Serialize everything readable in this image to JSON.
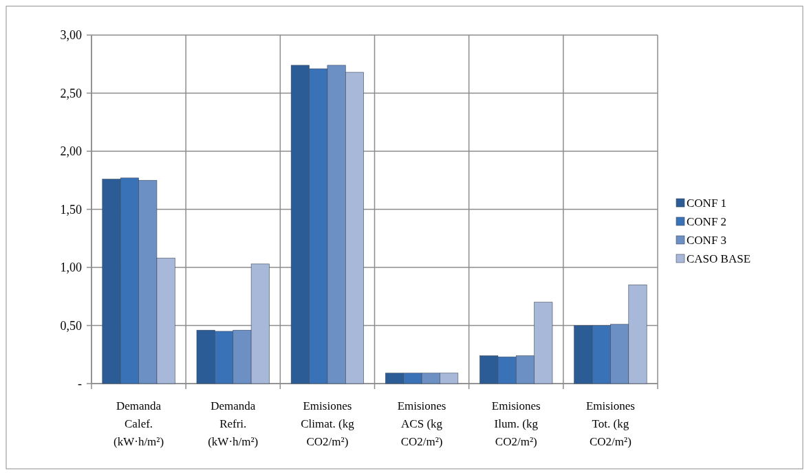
{
  "chart_data": {
    "type": "bar",
    "categories": [
      "Demanda Calef. (kW·h/m²)",
      "Demanda Refri. (kW·h/m²)",
      "Emisiones Climat. (kg CO2/m²)",
      "Emisiones ACS (kg CO2/m²)",
      "Emisiones Ilum. (kg CO2/m²)",
      "Emisiones Tot. (kg CO2/m²)"
    ],
    "series": [
      {
        "name": "CONF 1",
        "color": "#2c5c95",
        "values": [
          1.76,
          0.46,
          2.74,
          0.09,
          0.24,
          0.5
        ]
      },
      {
        "name": "CONF 2",
        "color": "#3a72b8",
        "values": [
          1.77,
          0.45,
          2.71,
          0.09,
          0.23,
          0.5
        ]
      },
      {
        "name": "CONF 3",
        "color": "#6c8fc4",
        "values": [
          1.75,
          0.46,
          2.74,
          0.09,
          0.24,
          0.51
        ]
      },
      {
        "name": "CASO BASE",
        "color": "#a8b8d8",
        "values": [
          1.08,
          1.03,
          2.68,
          0.09,
          0.7,
          0.85
        ]
      }
    ],
    "ylim": [
      0,
      3
    ],
    "yticks": [
      {
        "value": 0,
        "label": "-"
      },
      {
        "value": 0.5,
        "label": "0,50"
      },
      {
        "value": 1,
        "label": "1,00"
      },
      {
        "value": 1.5,
        "label": "1,50"
      },
      {
        "value": 2,
        "label": "2,00"
      },
      {
        "value": 2.5,
        "label": "2,50"
      },
      {
        "value": 3,
        "label": "3,00"
      }
    ],
    "grid": true,
    "legend": "right"
  }
}
